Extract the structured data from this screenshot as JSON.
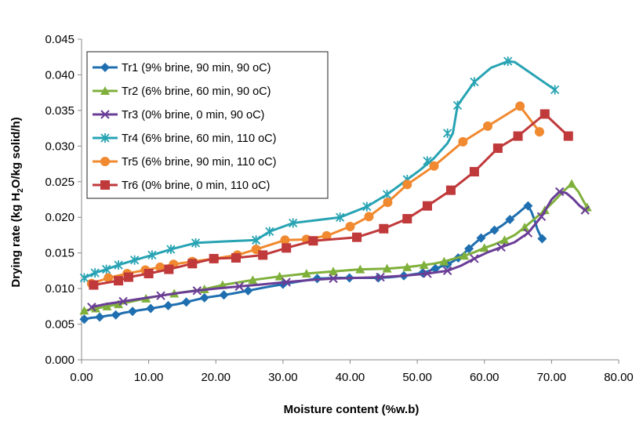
{
  "chart_data": {
    "type": "line",
    "xlabel": "Moisture content (%w.b)",
    "ylabel_parts": [
      "Drying rate (kg H",
      "2",
      "O/kg solid/h)"
    ],
    "xlim": [
      0,
      80
    ],
    "ylim": [
      0,
      0.045
    ],
    "x_ticks": [
      0,
      10,
      20,
      30,
      40,
      50,
      60,
      70,
      80
    ],
    "x_tick_labels": [
      "0.00",
      "10.00",
      "20.00",
      "30.00",
      "40.00",
      "50.00",
      "60.00",
      "70.00",
      "80.00"
    ],
    "y_ticks": [
      0,
      0.005,
      0.01,
      0.015,
      0.02,
      0.025,
      0.03,
      0.035,
      0.04,
      0.045
    ],
    "y_tick_labels": [
      "0.000",
      "0.005",
      "0.010",
      "0.015",
      "0.020",
      "0.025",
      "0.030",
      "0.035",
      "0.040",
      "0.045"
    ],
    "grid": false,
    "legend_position": "top-left",
    "series": [
      {
        "name": "Tr1 (9% brine, 90 min, 90 oC)",
        "color": "#1f6fb0",
        "marker": "diamond",
        "x": [
          0.4,
          1.5,
          2.7,
          3.9,
          5.1,
          6.3,
          7.6,
          8.9,
          10.3,
          11.6,
          12.9,
          14.2,
          15.6,
          16.9,
          18.3,
          21.2,
          22.5,
          24.8,
          27.5,
          30.0,
          32.4,
          35.1,
          38.0,
          39.9,
          42.5,
          44.2,
          46.0,
          48.0,
          49.5,
          50.8,
          51.8,
          52.7,
          53.6,
          54.5,
          55.3,
          56.1,
          56.9,
          57.7,
          58.5,
          59.5,
          60.5,
          61.5,
          62.7,
          63.8,
          64.9,
          65.9,
          66.5,
          67.0,
          67.5,
          67.9,
          68.3,
          68.6
        ],
        "y": [
          0.0057,
          0.0059,
          0.006,
          0.0062,
          0.0063,
          0.0066,
          0.0068,
          0.007,
          0.0072,
          0.0074,
          0.0076,
          0.0078,
          0.0081,
          0.0084,
          0.0087,
          0.0091,
          0.0093,
          0.0097,
          0.0102,
          0.0106,
          0.011,
          0.0114,
          0.0115,
          0.0115,
          0.0115,
          0.0115,
          0.0116,
          0.0118,
          0.012,
          0.0122,
          0.0125,
          0.0128,
          0.0131,
          0.0134,
          0.0138,
          0.0143,
          0.0149,
          0.0156,
          0.0163,
          0.0171,
          0.0177,
          0.0182,
          0.0189,
          0.0197,
          0.0205,
          0.0213,
          0.0216,
          0.0208,
          0.0195,
          0.0183,
          0.0175,
          0.017
        ],
        "markers_x": [
          0.4,
          2.7,
          5.1,
          7.6,
          10.3,
          12.9,
          15.6,
          18.3,
          21.2,
          24.8,
          30.0,
          35.1,
          39.9,
          44.2,
          48.0,
          50.8,
          52.7,
          54.5,
          56.1,
          57.7,
          59.5,
          61.5,
          63.8,
          66.5,
          68.6
        ],
        "markers_y": [
          0.0057,
          0.006,
          0.0063,
          0.0068,
          0.0072,
          0.0076,
          0.0081,
          0.0087,
          0.0091,
          0.0097,
          0.0106,
          0.0114,
          0.0115,
          0.0115,
          0.0118,
          0.0122,
          0.0128,
          0.0134,
          0.0143,
          0.0156,
          0.0171,
          0.0182,
          0.0197,
          0.0216,
          0.017
        ]
      },
      {
        "name": "Tr2  (6% brine, 60 min, 90 oC)",
        "color": "#7fb03c",
        "marker": "triangle",
        "x": [
          0.4,
          2.1,
          3.8,
          5.5,
          7.5,
          9.6,
          11.7,
          13.8,
          16.0,
          18.3,
          21.0,
          25.5,
          29.5,
          33.5,
          37.5,
          41.5,
          45.5,
          48.5,
          51.0,
          52.5,
          54.0,
          55.5,
          57.0,
          58.5,
          60.0,
          61.5,
          63.0,
          64.5,
          66.0,
          67.5,
          69.0,
          70.5,
          71.8,
          73.0,
          74.0,
          74.8,
          75.3
        ],
        "y": [
          0.0069,
          0.0072,
          0.0075,
          0.0078,
          0.0082,
          0.0086,
          0.009,
          0.0093,
          0.0096,
          0.0099,
          0.0105,
          0.0112,
          0.0117,
          0.0121,
          0.0124,
          0.0127,
          0.0128,
          0.013,
          0.0133,
          0.0135,
          0.0138,
          0.0142,
          0.0146,
          0.0151,
          0.0157,
          0.0162,
          0.0168,
          0.0175,
          0.0186,
          0.0198,
          0.021,
          0.0224,
          0.0237,
          0.0247,
          0.0236,
          0.0222,
          0.0214
        ],
        "markers_x": [
          0.4,
          2.1,
          3.8,
          5.5,
          9.6,
          13.8,
          18.3,
          21.0,
          25.5,
          29.5,
          33.5,
          37.5,
          41.5,
          45.5,
          48.5,
          51.0,
          54.0,
          57.0,
          60.0,
          63.0,
          66.0,
          69.0,
          73.0,
          75.3
        ],
        "markers_y": [
          0.0069,
          0.0072,
          0.0075,
          0.0078,
          0.0086,
          0.0093,
          0.0099,
          0.0105,
          0.0112,
          0.0117,
          0.0121,
          0.0124,
          0.0127,
          0.0128,
          0.013,
          0.0133,
          0.0138,
          0.0146,
          0.0157,
          0.0168,
          0.0186,
          0.021,
          0.0247,
          0.0214
        ]
      },
      {
        "name": "Tr3  (0% brine, 0 min, 90 oC)",
        "color": "#6a3d96",
        "marker": "x",
        "x": [
          1.5,
          3.5,
          6.2,
          9.0,
          11.8,
          14.5,
          17.2,
          20.0,
          23.5,
          27.0,
          30.5,
          34.0,
          37.5,
          41.0,
          44.5,
          48.0,
          51.5,
          54.5,
          56.5,
          58.5,
          60.5,
          62.5,
          64.5,
          66.5,
          68.5,
          70.0,
          71.2,
          72.2,
          73.2,
          74.2,
          75.0
        ],
        "y": [
          0.0074,
          0.0078,
          0.0082,
          0.0086,
          0.009,
          0.0094,
          0.0097,
          0.01,
          0.0103,
          0.0106,
          0.0109,
          0.0112,
          0.0114,
          0.0115,
          0.0116,
          0.0118,
          0.0121,
          0.0125,
          0.0132,
          0.0142,
          0.0151,
          0.0158,
          0.0165,
          0.0178,
          0.0201,
          0.0225,
          0.0236,
          0.0234,
          0.0226,
          0.0216,
          0.021
        ],
        "markers_x": [
          1.5,
          6.2,
          11.8,
          17.2,
          23.5,
          30.5,
          37.5,
          44.5,
          51.5,
          54.5,
          58.5,
          62.5,
          66.5,
          68.5,
          71.2,
          75.0
        ],
        "markers_y": [
          0.0074,
          0.0082,
          0.009,
          0.0097,
          0.0103,
          0.0109,
          0.0114,
          0.0116,
          0.0121,
          0.0125,
          0.0142,
          0.0158,
          0.0178,
          0.0201,
          0.0236,
          0.021
        ]
      },
      {
        "name": "Tr4  (6% brine, 60 min, 110 oC)",
        "color": "#27a3b3",
        "marker": "star",
        "x": [
          0.4,
          2.0,
          3.7,
          5.5,
          7.9,
          10.5,
          13.3,
          17.0,
          21.0,
          26.0,
          28.0,
          31.5,
          38.5,
          42.5,
          45.5,
          48.5,
          50.5,
          52.5,
          54.5,
          55.3,
          56.0,
          58.5,
          61.0,
          63.5,
          64.5,
          66.5,
          68.5,
          70.5
        ],
        "y": [
          0.0115,
          0.0122,
          0.0127,
          0.0133,
          0.014,
          0.0147,
          0.0155,
          0.0164,
          0.0166,
          0.0168,
          0.018,
          0.0192,
          0.02,
          0.0215,
          0.0232,
          0.0253,
          0.0267,
          0.0283,
          0.0304,
          0.0318,
          0.0357,
          0.039,
          0.041,
          0.0419,
          0.0418,
          0.0405,
          0.0392,
          0.0379
        ],
        "markers_x": [
          0.4,
          2.0,
          3.7,
          5.5,
          7.9,
          10.5,
          13.3,
          17.0,
          26.0,
          28.0,
          31.5,
          38.5,
          42.5,
          45.5,
          48.5,
          51.5,
          54.5,
          56.0,
          58.5,
          63.5,
          70.5
        ],
        "markers_y": [
          0.0115,
          0.0122,
          0.0127,
          0.0133,
          0.014,
          0.0147,
          0.0155,
          0.0164,
          0.0168,
          0.018,
          0.0192,
          0.02,
          0.0215,
          0.0232,
          0.0253,
          0.0279,
          0.0318,
          0.0357,
          0.039,
          0.0419,
          0.0379
        ]
      },
      {
        "name": "Tr5  (6% brine, 90 min, 110 oC)",
        "color": "#f0892f",
        "marker": "circle",
        "x": [
          1.5,
          4.0,
          6.8,
          9.5,
          11.7,
          13.7,
          16.5,
          19.8,
          23.2,
          26.0,
          30.3,
          33.5,
          36.5,
          40.0,
          42.8,
          45.6,
          48.5,
          52.5,
          56.8,
          60.5,
          65.3,
          68.2
        ],
        "y": [
          0.0107,
          0.0115,
          0.0121,
          0.0126,
          0.013,
          0.0134,
          0.0138,
          0.0142,
          0.0147,
          0.0155,
          0.0168,
          0.0169,
          0.0174,
          0.0187,
          0.0201,
          0.0221,
          0.0246,
          0.0272,
          0.0306,
          0.0328,
          0.0356,
          0.032
        ],
        "markers_x": [
          1.5,
          4.0,
          6.8,
          9.5,
          11.7,
          13.7,
          16.5,
          19.8,
          23.2,
          26.0,
          30.3,
          33.5,
          36.5,
          40.0,
          42.8,
          45.6,
          48.5,
          52.5,
          56.8,
          60.5,
          65.3,
          68.2
        ],
        "markers_y": [
          0.0107,
          0.0115,
          0.0121,
          0.0126,
          0.013,
          0.0134,
          0.0138,
          0.0142,
          0.0147,
          0.0155,
          0.0168,
          0.0169,
          0.0174,
          0.0187,
          0.0201,
          0.0221,
          0.0246,
          0.0272,
          0.0306,
          0.0328,
          0.0356,
          0.032
        ]
      },
      {
        "name": "Tr6  (0% brine, 0 min, 110 oC)",
        "color": "#c0393b",
        "marker": "square",
        "x": [
          1.8,
          5.5,
          7.0,
          10.0,
          13.0,
          16.5,
          19.7,
          23.0,
          27.0,
          30.5,
          34.5,
          41.0,
          45.0,
          48.5,
          51.5,
          55.0,
          58.5,
          62.0,
          65.0,
          69.0,
          72.5
        ],
        "y": [
          0.0105,
          0.0111,
          0.0116,
          0.0121,
          0.0127,
          0.0135,
          0.0142,
          0.0143,
          0.0147,
          0.0157,
          0.0167,
          0.0172,
          0.0184,
          0.0198,
          0.0216,
          0.0238,
          0.0264,
          0.0297,
          0.0314,
          0.0345,
          0.0314
        ],
        "markers_x": [
          1.8,
          5.5,
          7.0,
          10.0,
          13.0,
          16.5,
          19.7,
          23.0,
          27.0,
          30.5,
          34.5,
          41.0,
          45.0,
          48.5,
          51.5,
          55.0,
          58.5,
          62.0,
          65.0,
          69.0,
          72.5
        ],
        "markers_y": [
          0.0105,
          0.0111,
          0.0116,
          0.0121,
          0.0127,
          0.0135,
          0.0142,
          0.0143,
          0.0147,
          0.0157,
          0.0167,
          0.0172,
          0.0184,
          0.0198,
          0.0216,
          0.0238,
          0.0264,
          0.0297,
          0.0314,
          0.0345,
          0.0314
        ]
      }
    ]
  }
}
